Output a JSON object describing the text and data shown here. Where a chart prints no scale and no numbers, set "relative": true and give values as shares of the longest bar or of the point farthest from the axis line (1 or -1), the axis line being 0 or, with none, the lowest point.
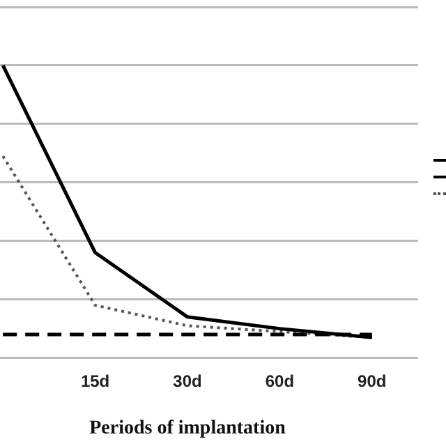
{
  "chart_data": {
    "type": "line",
    "xlabel": "Periods of implantation",
    "categories": [
      null,
      "15d",
      "30d",
      "60d",
      "90d"
    ],
    "relative": true,
    "grid": "y",
    "series": [
      {
        "color": "#000000",
        "line_style": "dashed",
        "values": [
          0.08,
          0.08,
          0.08,
          0.08,
          0.08
        ]
      },
      {
        "color": "#000000",
        "line_style": "solid",
        "values": [
          1,
          0.36,
          0.14,
          0.1,
          0.07
        ]
      },
      {
        "color": "#555555",
        "line_style": "dotted",
        "values": [
          0.69,
          0.18,
          0.11,
          0.09,
          0.07
        ]
      }
    ]
  }
}
